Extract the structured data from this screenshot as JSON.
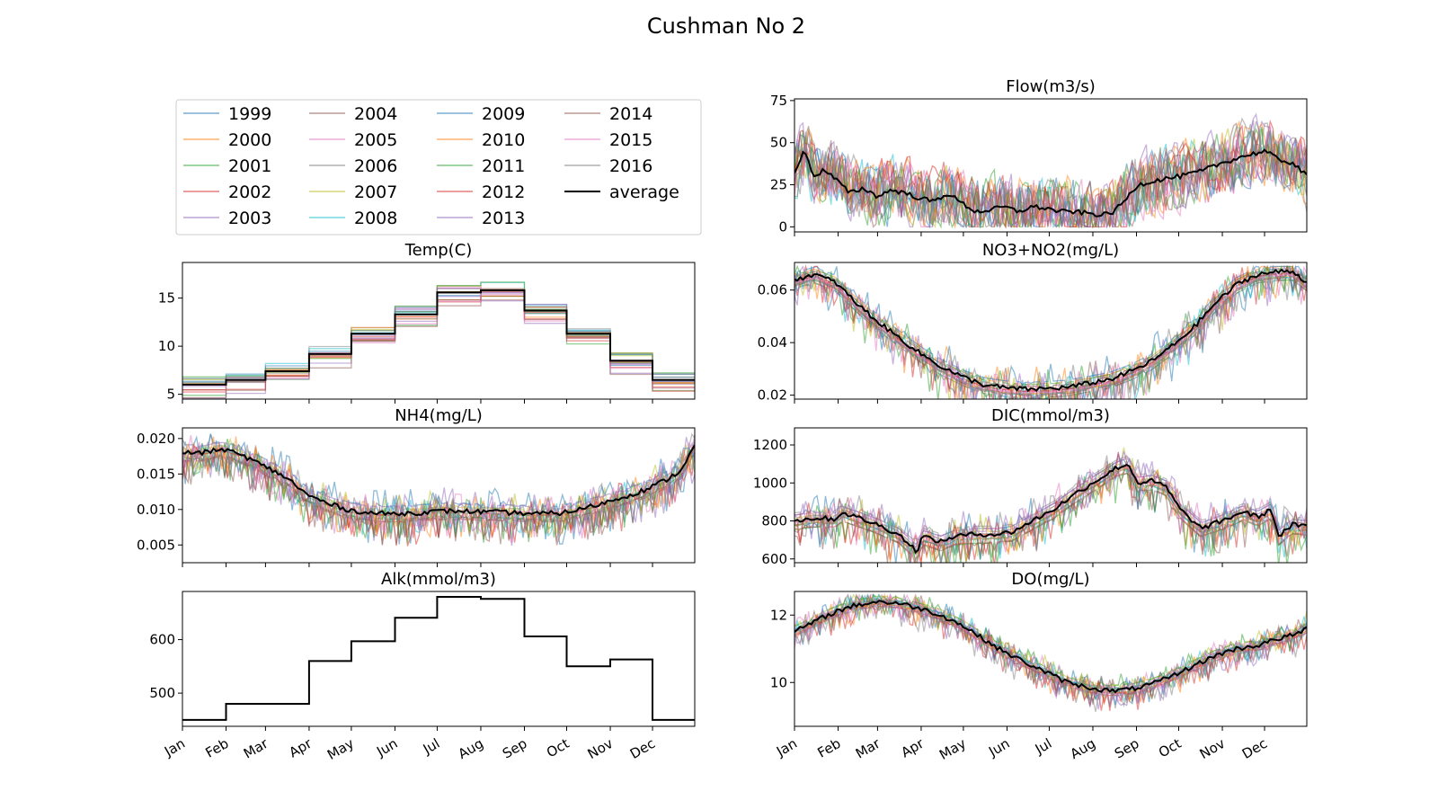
{
  "figure_title": "Cushman No 2",
  "month_labels": [
    "Jan",
    "Feb",
    "Mar",
    "Apr",
    "May",
    "Jun",
    "Jul",
    "Aug",
    "Sep",
    "Oct",
    "Nov",
    "Dec"
  ],
  "legend": {
    "entries": [
      "1999",
      "2000",
      "2001",
      "2002",
      "2003",
      "2004",
      "2005",
      "2006",
      "2007",
      "2008",
      "2009",
      "2010",
      "2011",
      "2012",
      "2013",
      "2014",
      "2015",
      "2016",
      "average"
    ],
    "columns": 4,
    "placement": "upper-left"
  },
  "colors": {
    "years": [
      "#1f77b4",
      "#ff7f0e",
      "#2ca02c",
      "#d62728",
      "#9467bd",
      "#8c564b",
      "#e377c2",
      "#7f7f7f",
      "#bcbd22",
      "#17becf",
      "#1f77b4",
      "#ff7f0e",
      "#2ca02c",
      "#d62728",
      "#9467bd",
      "#8c564b",
      "#e377c2",
      "#7f7f7f"
    ],
    "average": "#000000"
  },
  "chart_data": [
    {
      "id": "flow",
      "type": "line",
      "title": "Flow(m3/s)",
      "position": "right-1",
      "ylim": [
        -3,
        76
      ],
      "yticks": [
        0,
        25,
        50,
        75
      ],
      "yticklabels": [
        "0",
        "25",
        "50",
        "75"
      ],
      "x_is_day_of_year": true,
      "show_xticklabels": false,
      "year_series": {
        "style": "noisy",
        "min": 0,
        "max": 72,
        "noise": 0.45
      },
      "average": [
        [
          1,
          33
        ],
        [
          8,
          45
        ],
        [
          15,
          30
        ],
        [
          22,
          34
        ],
        [
          32,
          27
        ],
        [
          40,
          20
        ],
        [
          50,
          23
        ],
        [
          60,
          18
        ],
        [
          70,
          22
        ],
        [
          80,
          20
        ],
        [
          90,
          17
        ],
        [
          100,
          15
        ],
        [
          110,
          20
        ],
        [
          120,
          14
        ],
        [
          130,
          9
        ],
        [
          140,
          10
        ],
        [
          150,
          12
        ],
        [
          160,
          9
        ],
        [
          170,
          12
        ],
        [
          180,
          11
        ],
        [
          190,
          9
        ],
        [
          200,
          9
        ],
        [
          210,
          8
        ],
        [
          220,
          7
        ],
        [
          228,
          9
        ],
        [
          235,
          15
        ],
        [
          245,
          25
        ],
        [
          260,
          28
        ],
        [
          275,
          30
        ],
        [
          290,
          33
        ],
        [
          305,
          38
        ],
        [
          320,
          42
        ],
        [
          335,
          45
        ],
        [
          345,
          40
        ],
        [
          355,
          38
        ],
        [
          365,
          30
        ]
      ]
    },
    {
      "id": "temp",
      "type": "line",
      "title": "Temp(C)",
      "position": "left-2",
      "ylim": [
        4.5,
        18.7
      ],
      "yticks": [
        5,
        10,
        15
      ],
      "yticklabels": [
        "5",
        "10",
        "15"
      ],
      "x_is_day_of_year": true,
      "show_xticklabels": false,
      "year_series": {
        "style": "monthly-step",
        "spread": 1.2
      },
      "monthly_average": [
        6.0,
        6.5,
        7.4,
        9.2,
        11.3,
        13.3,
        15.6,
        15.8,
        13.7,
        11.3,
        8.5,
        6.5
      ]
    },
    {
      "id": "no3",
      "type": "line",
      "title": "NO3+NO2(mg/L)",
      "position": "right-2",
      "ylim": [
        0.0185,
        0.0705
      ],
      "yticks": [
        0.02,
        0.04,
        0.06
      ],
      "yticklabels": [
        "0.02",
        "0.04",
        "0.06"
      ],
      "x_is_day_of_year": true,
      "show_xticklabels": false,
      "year_series": {
        "style": "smooth-noise",
        "spread": 0.006,
        "noise": 0.25,
        "max": 0.069
      },
      "average": [
        [
          1,
          0.064
        ],
        [
          15,
          0.066
        ],
        [
          30,
          0.063
        ],
        [
          45,
          0.055
        ],
        [
          60,
          0.048
        ],
        [
          75,
          0.042
        ],
        [
          90,
          0.036
        ],
        [
          105,
          0.031
        ],
        [
          120,
          0.027
        ],
        [
          135,
          0.024
        ],
        [
          150,
          0.0228
        ],
        [
          165,
          0.0222
        ],
        [
          180,
          0.0225
        ],
        [
          195,
          0.023
        ],
        [
          210,
          0.0245
        ],
        [
          225,
          0.026
        ],
        [
          240,
          0.029
        ],
        [
          255,
          0.033
        ],
        [
          270,
          0.039
        ],
        [
          285,
          0.046
        ],
        [
          300,
          0.055
        ],
        [
          315,
          0.062
        ],
        [
          330,
          0.066
        ],
        [
          345,
          0.067
        ],
        [
          355,
          0.067
        ],
        [
          365,
          0.063
        ]
      ]
    },
    {
      "id": "nh4",
      "type": "line",
      "title": "NH4(mg/L)",
      "position": "left-3",
      "ylim": [
        0.0025,
        0.0215
      ],
      "yticks": [
        0.005,
        0.01,
        0.015,
        0.02
      ],
      "yticklabels": [
        "0.005",
        "0.010",
        "0.015",
        "0.020"
      ],
      "x_is_day_of_year": true,
      "show_xticklabels": false,
      "year_series": {
        "style": "smooth-noise",
        "spread": 0.002,
        "noise": 0.45,
        "max": 0.021
      },
      "average": [
        [
          1,
          0.018
        ],
        [
          15,
          0.018
        ],
        [
          30,
          0.0185
        ],
        [
          45,
          0.0175
        ],
        [
          60,
          0.016
        ],
        [
          75,
          0.0145
        ],
        [
          90,
          0.012
        ],
        [
          105,
          0.0108
        ],
        [
          120,
          0.0099
        ],
        [
          135,
          0.0095
        ],
        [
          150,
          0.0094
        ],
        [
          165,
          0.0095
        ],
        [
          180,
          0.0097
        ],
        [
          195,
          0.0098
        ],
        [
          210,
          0.0097
        ],
        [
          225,
          0.0096
        ],
        [
          240,
          0.0095
        ],
        [
          255,
          0.0094
        ],
        [
          270,
          0.0095
        ],
        [
          285,
          0.0101
        ],
        [
          300,
          0.0109
        ],
        [
          315,
          0.0118
        ],
        [
          330,
          0.0128
        ],
        [
          345,
          0.0142
        ],
        [
          355,
          0.0155
        ],
        [
          365,
          0.019
        ]
      ]
    },
    {
      "id": "dic",
      "type": "line",
      "title": "DIC(mmol/m3)",
      "position": "right-3",
      "ylim": [
        580,
        1290
      ],
      "yticks": [
        600,
        800,
        1000,
        1200
      ],
      "yticklabels": [
        "600",
        "800",
        "1000",
        "1200"
      ],
      "x_is_day_of_year": true,
      "show_xticklabels": false,
      "year_series": {
        "style": "smooth-noise",
        "spread": 80,
        "noise": 0.25,
        "max": 1240
      },
      "average": [
        [
          1,
          800
        ],
        [
          15,
          815
        ],
        [
          30,
          810
        ],
        [
          35,
          845
        ],
        [
          45,
          820
        ],
        [
          60,
          780
        ],
        [
          75,
          730
        ],
        [
          88,
          640
        ],
        [
          92,
          720
        ],
        [
          105,
          690
        ],
        [
          115,
          720
        ],
        [
          130,
          730
        ],
        [
          145,
          730
        ],
        [
          155,
          740
        ],
        [
          170,
          800
        ],
        [
          185,
          860
        ],
        [
          200,
          940
        ],
        [
          215,
          1010
        ],
        [
          230,
          1080
        ],
        [
          238,
          1100
        ],
        [
          245,
          1000
        ],
        [
          255,
          1010
        ],
        [
          265,
          980
        ],
        [
          275,
          860
        ],
        [
          290,
          760
        ],
        [
          305,
          800
        ],
        [
          320,
          850
        ],
        [
          330,
          820
        ],
        [
          340,
          860
        ],
        [
          345,
          720
        ],
        [
          355,
          780
        ],
        [
          365,
          770
        ]
      ]
    },
    {
      "id": "alk",
      "type": "line",
      "title": "Alk(mmol/m3)",
      "position": "left-4",
      "ylim": [
        438,
        690
      ],
      "yticks": [
        500,
        600
      ],
      "yticklabels": [
        "500",
        "600"
      ],
      "x_is_day_of_year": true,
      "show_xticklabels": true,
      "year_series": {
        "style": "none"
      },
      "monthly_average": [
        450,
        480,
        480,
        560,
        597,
        641,
        680,
        676,
        606,
        550,
        563,
        450
      ]
    },
    {
      "id": "do",
      "type": "line",
      "title": "DO(mg/L)",
      "position": "right-4",
      "ylim": [
        8.7,
        12.7
      ],
      "yticks": [
        10,
        12
      ],
      "yticklabels": [
        "10",
        "12"
      ],
      "x_is_day_of_year": true,
      "show_xticklabels": true,
      "year_series": {
        "style": "smooth-noise",
        "spread": 0.3,
        "noise": 0.35,
        "max": 12.6
      },
      "average": [
        [
          1,
          11.5
        ],
        [
          15,
          11.8
        ],
        [
          30,
          12.1
        ],
        [
          45,
          12.3
        ],
        [
          60,
          12.4
        ],
        [
          75,
          12.35
        ],
        [
          90,
          12.2
        ],
        [
          105,
          12.0
        ],
        [
          120,
          11.7
        ],
        [
          135,
          11.3
        ],
        [
          150,
          10.9
        ],
        [
          165,
          10.6
        ],
        [
          180,
          10.3
        ],
        [
          195,
          10.0
        ],
        [
          210,
          9.85
        ],
        [
          225,
          9.75
        ],
        [
          240,
          9.8
        ],
        [
          255,
          9.95
        ],
        [
          270,
          10.2
        ],
        [
          285,
          10.5
        ],
        [
          300,
          10.8
        ],
        [
          315,
          11.0
        ],
        [
          330,
          11.1
        ],
        [
          345,
          11.3
        ],
        [
          355,
          11.4
        ],
        [
          365,
          11.6
        ]
      ]
    }
  ]
}
